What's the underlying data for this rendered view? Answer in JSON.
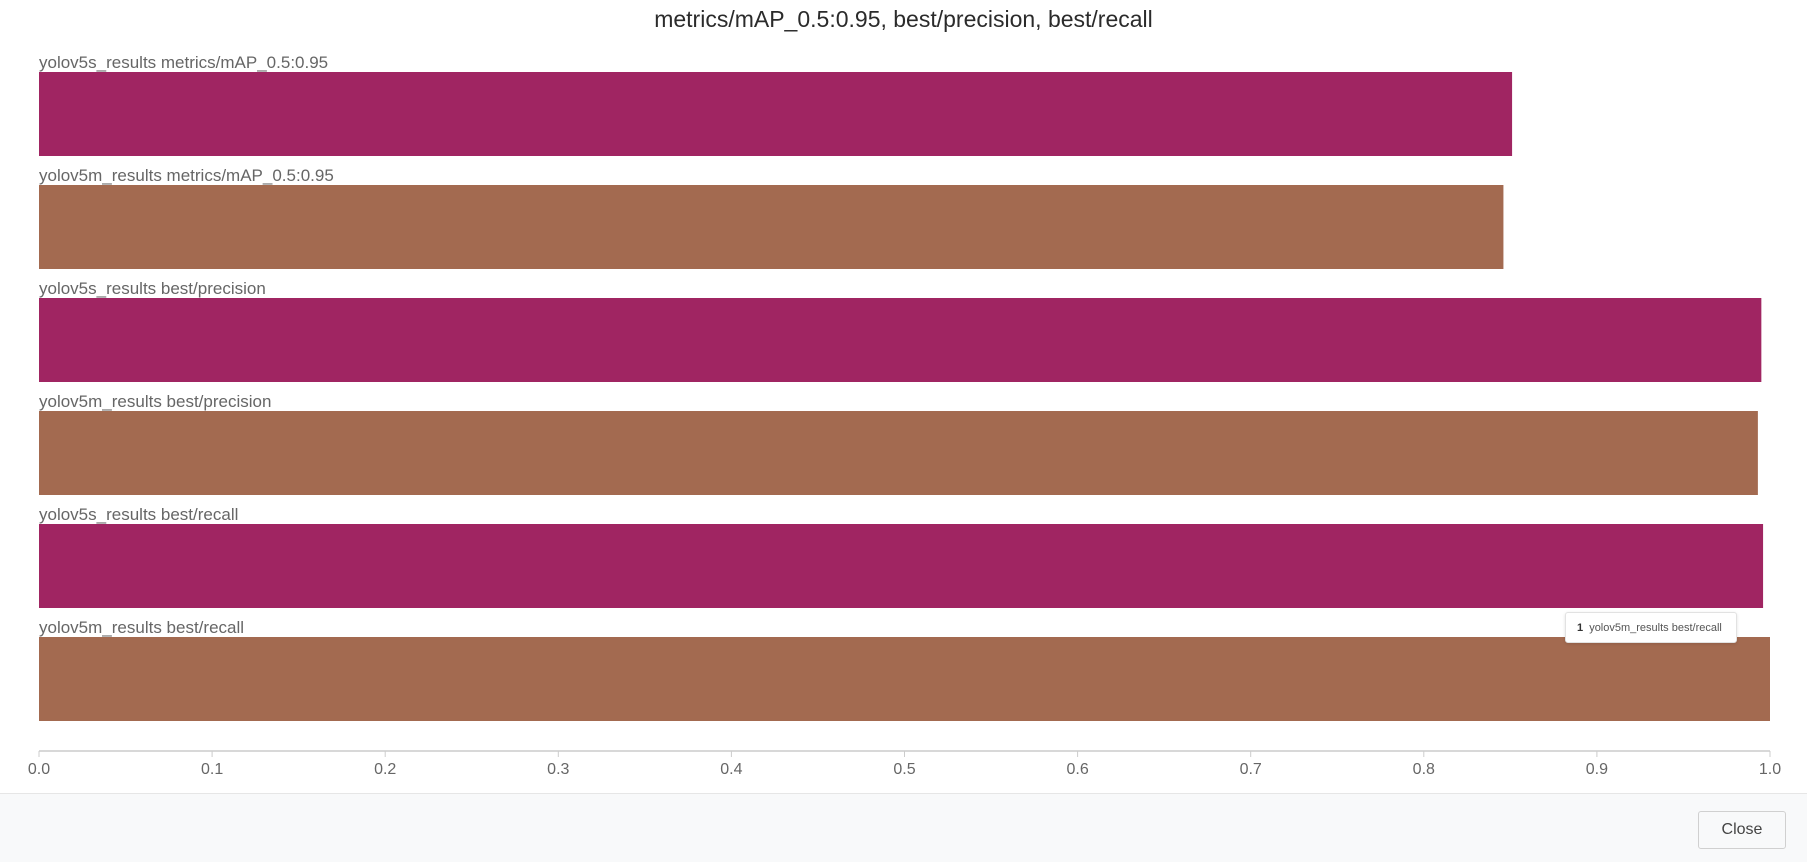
{
  "chart_data": {
    "type": "bar",
    "orientation": "horizontal",
    "title": "metrics/mAP_0.5:0.95, best/precision, best/recall",
    "categories": [
      "yolov5s_results metrics/mAP_0.5:0.95",
      "yolov5m_results metrics/mAP_0.5:0.95",
      "yolov5s_results best/precision",
      "yolov5m_results best/precision",
      "yolov5s_results best/recall",
      "yolov5m_results best/recall"
    ],
    "values": [
      0.851,
      0.846,
      0.995,
      0.993,
      0.996,
      1.0
    ],
    "bar_colors": [
      "#a02562",
      "#a36a50",
      "#a02562",
      "#a36a50",
      "#a02562",
      "#a36a50"
    ],
    "xlim": [
      0.0,
      1.0
    ],
    "x_ticks": [
      "0.0",
      "0.1",
      "0.2",
      "0.3",
      "0.4",
      "0.5",
      "0.6",
      "0.7",
      "0.8",
      "0.9",
      "1.0"
    ],
    "xlabel": "",
    "ylabel": "",
    "grid": false,
    "legend": "none"
  },
  "tooltip": {
    "index": "1",
    "label": "yolov5m_results best/recall"
  },
  "footer": {
    "close_label": "Close"
  }
}
